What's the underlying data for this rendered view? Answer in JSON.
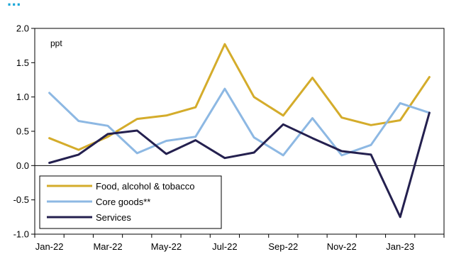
{
  "title": "...",
  "chart_data": {
    "type": "line",
    "unit_label": "ppt",
    "x": [
      "Jan-22",
      "Feb-22",
      "Mar-22",
      "Apr-22",
      "May-22",
      "Jun-22",
      "Jul-22",
      "Aug-22",
      "Sep-22",
      "Oct-22",
      "Nov-22",
      "Dec-22",
      "Jan-23",
      "Feb-23"
    ],
    "x_tick_labels": [
      "Jan-22",
      "Mar-22",
      "May-22",
      "Jul-22",
      "Sep-22",
      "Nov-22",
      "Jan-23"
    ],
    "ylim": [
      -1.0,
      2.0
    ],
    "y_ticks": [
      "2.0",
      "1.5",
      "1.0",
      "0.5",
      "0.0",
      "-0.5",
      "-1.0"
    ],
    "legend_position": "bottom-left",
    "series": [
      {
        "name": "Food, alcohol & tobacco",
        "color": "#d4ac2b",
        "values": [
          0.4,
          0.23,
          0.42,
          0.68,
          0.73,
          0.85,
          1.77,
          1.0,
          0.73,
          1.28,
          0.7,
          0.59,
          0.66,
          1.29
        ]
      },
      {
        "name": "Core goods**",
        "color": "#8db8e3",
        "values": [
          1.06,
          0.65,
          0.58,
          0.18,
          0.36,
          0.42,
          1.12,
          0.41,
          0.15,
          0.69,
          0.15,
          0.3,
          0.91,
          0.77
        ]
      },
      {
        "name": "Services",
        "color": "#24204f",
        "values": [
          0.04,
          0.16,
          0.46,
          0.51,
          0.17,
          0.37,
          0.11,
          0.19,
          0.6,
          0.4,
          0.21,
          0.16,
          -0.75,
          0.77
        ]
      }
    ]
  }
}
